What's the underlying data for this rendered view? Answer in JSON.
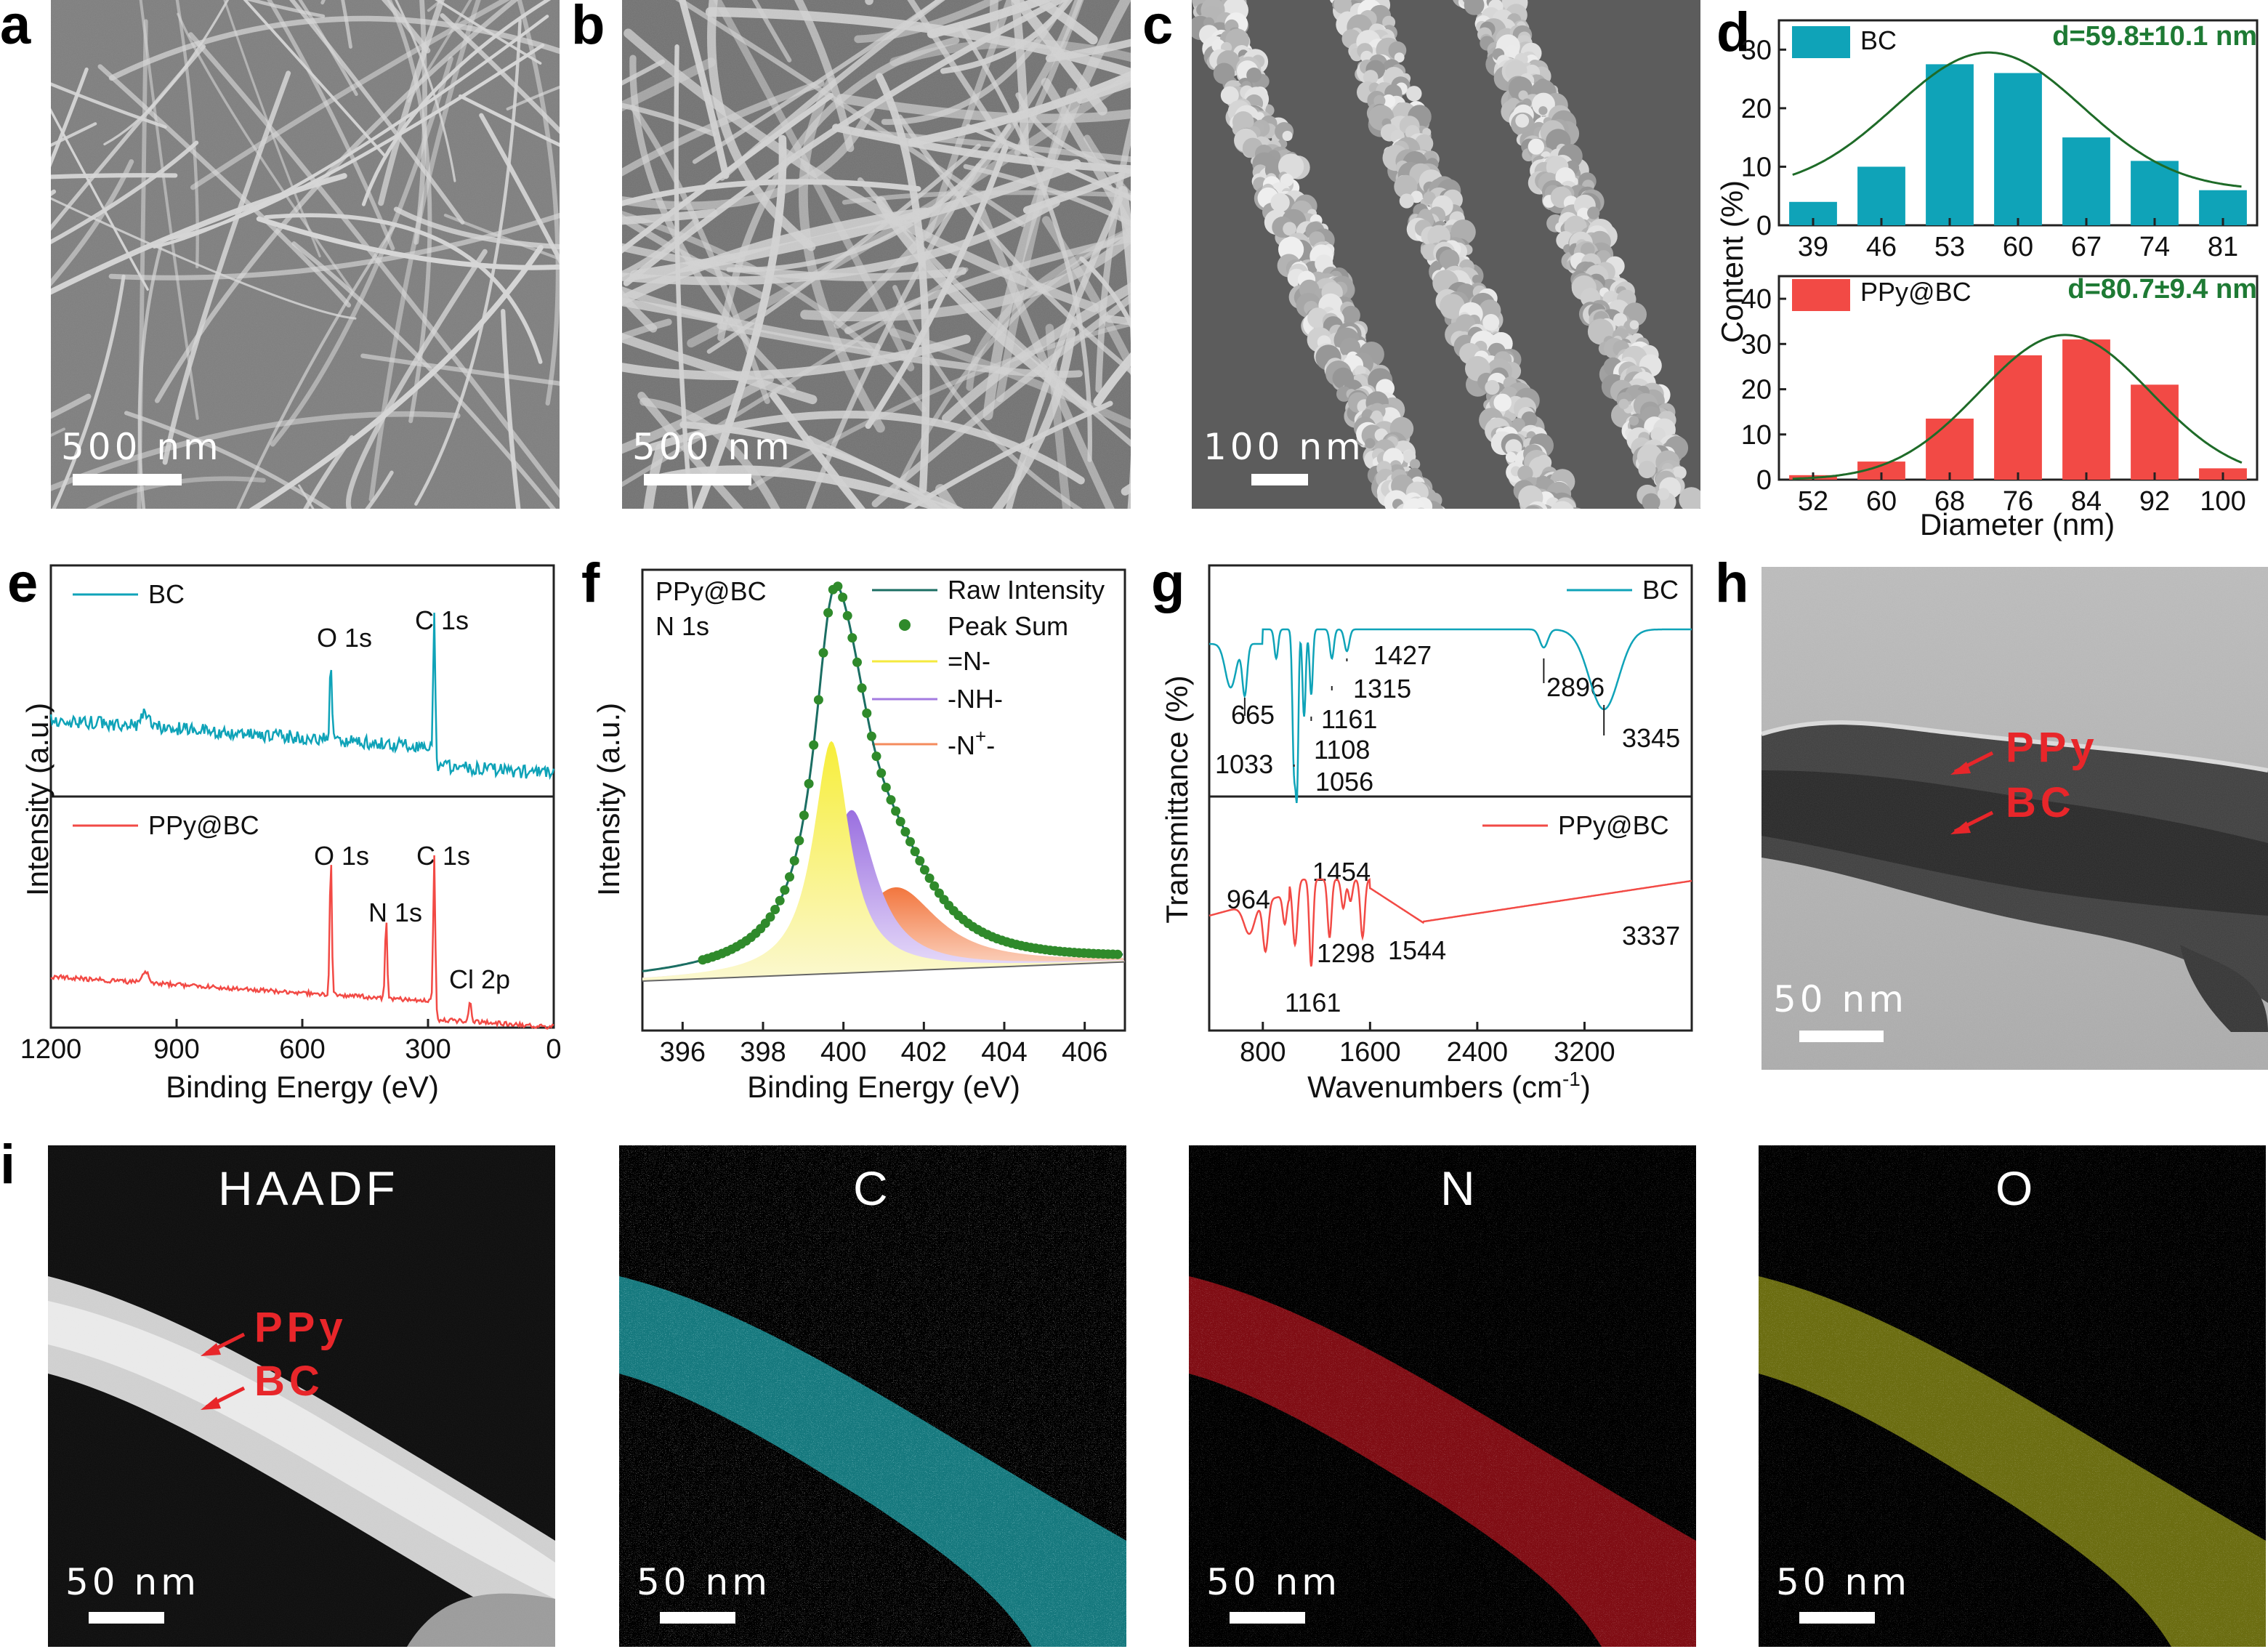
{
  "panels": {
    "a": {
      "letter": "a",
      "scale": "500 nm"
    },
    "b": {
      "letter": "b",
      "scale": "500 nm"
    },
    "c": {
      "letter": "c",
      "scale": "100 nm"
    },
    "h": {
      "letter": "h",
      "scale": "50 nm",
      "label1": "PPy",
      "label2": "BC"
    },
    "i": {
      "letter": "i",
      "haadf": "HAADF",
      "c": "C",
      "n": "N",
      "o": "O",
      "scale": "50 nm",
      "label1": "PPy",
      "label2": "BC"
    }
  },
  "colors": {
    "bc": "#0fa3b8",
    "ppy": "#f24a45",
    "fit": "#1e6b28",
    "yellow": "#f4ea3e",
    "purple": "#a37be0",
    "orange": "#f48b5c",
    "teal_dark": "#1b6e63"
  },
  "chart_data": [
    {
      "id": "d",
      "type": "bar",
      "letter": "d",
      "ylabel": "Content (%)",
      "xlabel": "Diameter (nm)",
      "top": {
        "name": "BC",
        "annotation": "d=59.8±10.1 nm",
        "categories": [
          "39",
          "46",
          "53",
          "60",
          "67",
          "74",
          "81"
        ],
        "values": [
          4,
          10,
          27.5,
          26,
          15,
          11,
          6
        ],
        "ylim": [
          0,
          35
        ],
        "yticks": [
          "0",
          "10",
          "20",
          "30"
        ],
        "fit_mean": 57,
        "fit_sd": 9.6,
        "fit_amp": 23.5,
        "fit_base": 6
      },
      "bottom": {
        "name": "PPy@BC",
        "annotation": "d=80.7±9.4 nm",
        "categories": [
          "52",
          "60",
          "68",
          "76",
          "84",
          "92",
          "100"
        ],
        "values": [
          1,
          4,
          13.5,
          27.5,
          31,
          21,
          2.5
        ],
        "ylim": [
          0,
          45
        ],
        "yticks": [
          "0",
          "10",
          "20",
          "30",
          "40"
        ],
        "fit_mean": 81.5,
        "fit_sd": 10,
        "fit_amp": 32
      }
    },
    {
      "id": "e",
      "type": "line",
      "letter": "e",
      "xlabel": "Binding Energy (eV)",
      "ylabel": "Intensity (a.u.)",
      "xticks": [
        "1200",
        "900",
        "600",
        "300",
        "0"
      ],
      "top": {
        "name": "BC",
        "peaks": [
          "O 1s",
          "C 1s"
        ]
      },
      "bottom": {
        "name": "PPy@BC",
        "peaks": [
          "O 1s",
          "N 1s",
          "C 1s",
          "Cl 2p"
        ]
      }
    },
    {
      "id": "f",
      "type": "line",
      "letter": "f",
      "title_line1": "PPy@BC",
      "title_line2": "N 1s",
      "xlabel": "Binding Energy (eV)",
      "ylabel": "Intensity (a.u.)",
      "xticks": [
        "396",
        "398",
        "400",
        "402",
        "404",
        "406"
      ],
      "xlim": [
        395,
        407
      ],
      "legend": [
        "Raw Intensity",
        "Peak Sum",
        "=N-",
        "-NH-",
        "-N",
        "+",
        "-"
      ],
      "components": [
        {
          "name": "=N-",
          "center": 399.7,
          "amp": 0.5,
          "width": 0.55
        },
        {
          "name": "-NH-",
          "center": 400.2,
          "amp": 0.35,
          "width": 0.75
        },
        {
          "name": "-N+-",
          "center": 401.3,
          "amp": 0.18,
          "width": 1.3
        }
      ]
    },
    {
      "id": "g",
      "type": "line",
      "letter": "g",
      "xlabel_pre": "Wavenumbers (cm",
      "xlabel_sup": "-1",
      "xlabel_post": ")",
      "ylabel": "Transmittance (%)",
      "xticks": [
        "800",
        "1600",
        "2400",
        "3200"
      ],
      "top": {
        "name": "BC",
        "peaks": [
          "665",
          "1033",
          "1056",
          "1108",
          "1161",
          "1315",
          "1427",
          "2896",
          "3345"
        ]
      },
      "bottom": {
        "name": "PPy@BC",
        "peaks": [
          "964",
          "1161",
          "1298",
          "1454",
          "1544",
          "3337"
        ]
      }
    }
  ]
}
